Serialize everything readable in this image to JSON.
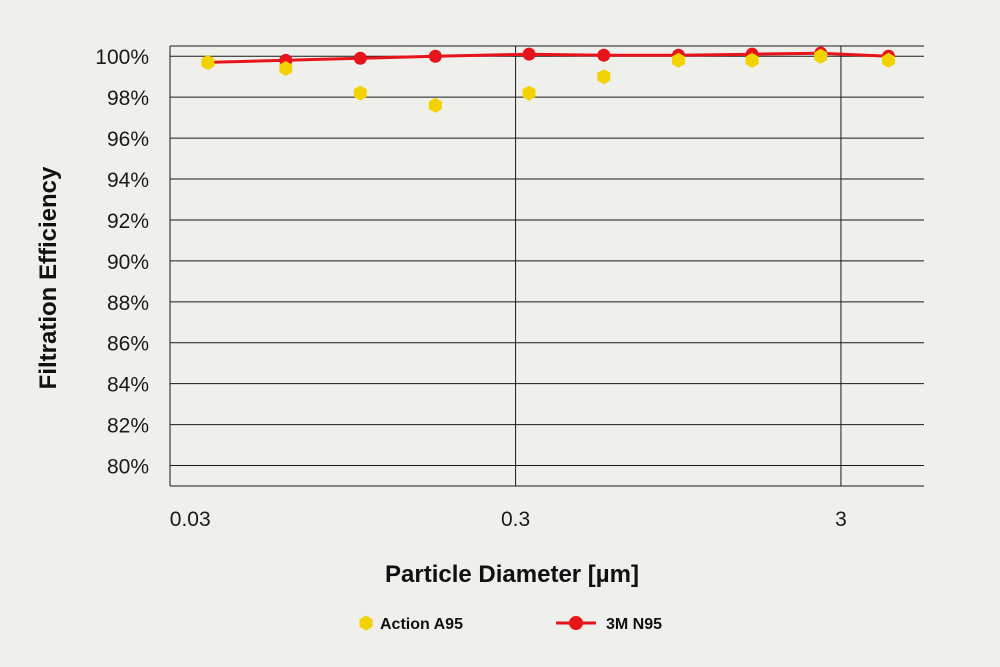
{
  "chart_data": {
    "type": "line",
    "xlabel": "Particle Diameter [µm]",
    "ylabel": "Filtration Efficiency",
    "x_scale": "log",
    "x_ticks": [
      0.03,
      0.3,
      3
    ],
    "x_tick_labels": [
      "0.03",
      "0.3",
      "3"
    ],
    "xlim": [
      0.026,
      5.4
    ],
    "ylim": [
      79,
      100.5
    ],
    "y_ticks": [
      80,
      82,
      84,
      86,
      88,
      90,
      92,
      94,
      96,
      98,
      100
    ],
    "y_tick_labels": [
      "80%",
      "82%",
      "84%",
      "86%",
      "88%",
      "90%",
      "92%",
      "94%",
      "96%",
      "98%",
      "100%"
    ],
    "grid": true,
    "legend_position": "bottom",
    "series": [
      {
        "name": "Action A95",
        "marker": "hexagon",
        "line": false,
        "color": "#f2d200",
        "x": [
          0.034,
          0.059,
          0.1,
          0.17,
          0.33,
          0.56,
          0.95,
          1.6,
          2.6,
          4.2
        ],
        "y": [
          99.7,
          99.4,
          98.2,
          97.6,
          98.2,
          99.0,
          99.8,
          99.8,
          100.0,
          99.8
        ]
      },
      {
        "name": "3M N95",
        "marker": "circle",
        "line": true,
        "color": "#e8141c",
        "x": [
          0.034,
          0.059,
          0.1,
          0.17,
          0.33,
          0.56,
          0.95,
          1.6,
          2.6,
          4.2
        ],
        "y": [
          99.7,
          99.8,
          99.9,
          100.0,
          100.1,
          100.05,
          100.05,
          100.1,
          100.15,
          100.0
        ]
      }
    ]
  }
}
